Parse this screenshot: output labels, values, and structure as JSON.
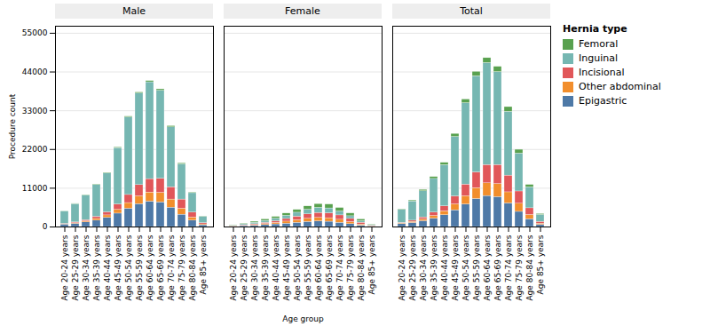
{
  "chart_data": [
    {
      "type": "bar",
      "title": "Male",
      "stacked": true,
      "grid": true,
      "ylabel": "Procedure count",
      "categories": [
        "Age 20-24 years",
        "Age 25-29 years",
        "Age 30-34 years",
        "Age 35-39 years",
        "Age 40-44 years",
        "Age 45-49 years",
        "Age 50-54 years",
        "Age 55-59 years",
        "Age 60-64 years",
        "Age 65-69 years",
        "Age 70-74 years",
        "Age 75-79 years",
        "Age 80-84 years",
        "Age 85+ years"
      ],
      "series": [
        {
          "name": "Epigastric",
          "values": [
            700,
            900,
            1300,
            1800,
            2600,
            3800,
            5200,
            6500,
            7200,
            7000,
            5500,
            3500,
            1800,
            500
          ]
        },
        {
          "name": "Other abdominal",
          "values": [
            100,
            200,
            300,
            500,
            700,
            1100,
            1600,
            2200,
            2600,
            2700,
            2300,
            1700,
            900,
            250
          ]
        },
        {
          "name": "Incisional",
          "values": [
            100,
            200,
            350,
            600,
            900,
            1500,
            2300,
            3200,
            3800,
            4000,
            3500,
            2600,
            1400,
            350
          ]
        },
        {
          "name": "Inguinal",
          "values": [
            3500,
            5200,
            7000,
            9000,
            11000,
            16000,
            22000,
            26000,
            27500,
            25000,
            17000,
            10000,
            5500,
            1800
          ]
        },
        {
          "name": "Femoral",
          "values": [
            50,
            80,
            100,
            130,
            150,
            200,
            250,
            300,
            350,
            400,
            350,
            280,
            200,
            80
          ]
        }
      ],
      "ylim": [
        0,
        57000
      ],
      "yticks": [
        0,
        11000,
        22000,
        33000,
        44000,
        55000
      ]
    },
    {
      "type": "bar",
      "title": "Female",
      "stacked": true,
      "grid": true,
      "tick_labels": "x",
      "xlabel": "Age group",
      "categories": [
        "Age 20-24 years",
        "Age 25-29 years",
        "Age 30-34 years",
        "Age 35-39 years",
        "Age 40-44 years",
        "Age 45-49 years",
        "Age 50-54 years",
        "Age 55-59 years",
        "Age 60-64 years",
        "Age 65-69 years",
        "Age 70-74 years",
        "Age 75-79 years",
        "Age 80-84 years",
        "Age 85+ years"
      ],
      "series": [
        {
          "name": "Epigastric",
          "values": [
            150,
            250,
            380,
            550,
            750,
            950,
            1200,
            1450,
            1600,
            1500,
            1200,
            800,
            400,
            120
          ]
        },
        {
          "name": "Other abdominal",
          "values": [
            70,
            120,
            200,
            300,
            420,
            580,
            750,
            900,
            1000,
            1000,
            850,
            600,
            320,
            90
          ]
        },
        {
          "name": "Incisional",
          "values": [
            60,
            120,
            200,
            330,
            500,
            750,
            1000,
            1250,
            1400,
            1400,
            1250,
            900,
            500,
            150
          ]
        },
        {
          "name": "Inguinal",
          "values": [
            150,
            280,
            420,
            560,
            700,
            900,
            1100,
            1300,
            1450,
            1380,
            1100,
            750,
            430,
            170
          ]
        },
        {
          "name": "Femoral",
          "values": [
            80,
            180,
            300,
            420,
            500,
            650,
            800,
            950,
            1050,
            1100,
            1000,
            800,
            500,
            180
          ]
        }
      ],
      "ylim": [
        0,
        57000
      ],
      "yticks": [
        0,
        11000,
        22000,
        33000,
        44000,
        55000
      ]
    },
    {
      "type": "bar",
      "title": "Total",
      "stacked": true,
      "grid": true,
      "tick_labels": "x",
      "legend": "right",
      "legend_title": "Hernia type",
      "categories": [
        "Age 20-24 years",
        "Age 25-29 years",
        "Age 30-34 years",
        "Age 35-39 years",
        "Age 40-44 years",
        "Age 45-49 years",
        "Age 50-54 years",
        "Age 55-59 years",
        "Age 60-64 years",
        "Age 65-69 years",
        "Age 70-74 years",
        "Age 75-79 years",
        "Age 80-84 years",
        "Age 85+ years"
      ],
      "series": [
        {
          "name": "Epigastric",
          "values": [
            850,
            1150,
            1680,
            2350,
            3350,
            4750,
            6400,
            7950,
            8800,
            8500,
            6700,
            4300,
            2200,
            620
          ]
        },
        {
          "name": "Other abdominal",
          "values": [
            170,
            320,
            500,
            800,
            1120,
            1680,
            2350,
            3100,
            3600,
            3700,
            3150,
            2300,
            1220,
            340
          ]
        },
        {
          "name": "Incisional",
          "values": [
            160,
            320,
            550,
            930,
            1400,
            2250,
            3300,
            4450,
            5200,
            5400,
            4750,
            3500,
            1900,
            500
          ]
        },
        {
          "name": "Inguinal",
          "values": [
            3650,
            5480,
            7420,
            9560,
            11700,
            16900,
            23100,
            27300,
            28950,
            26380,
            18100,
            10750,
            5930,
            1970
          ]
        },
        {
          "name": "Femoral",
          "values": [
            130,
            260,
            400,
            550,
            650,
            850,
            1050,
            1250,
            1400,
            1500,
            1350,
            1080,
            700,
            260
          ]
        }
      ],
      "ylim": [
        0,
        57000
      ],
      "yticks": [
        0,
        11000,
        22000,
        33000,
        44000,
        55000
      ]
    }
  ]
}
